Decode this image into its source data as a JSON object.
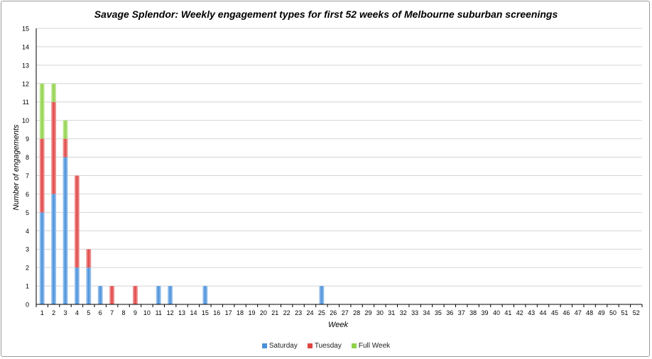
{
  "chart_data": {
    "type": "bar",
    "stacked": true,
    "title": "Savage Splendor: Weekly engagement types for first 52 weeks of Melbourne suburban screenings",
    "xlabel": "Week",
    "ylabel": "Number of engagements",
    "ylim": [
      0,
      15
    ],
    "y_ticks": [
      "0",
      "1",
      "2",
      "3",
      "4",
      "5",
      "6",
      "7",
      "8",
      "9",
      "10",
      "11",
      "12",
      "13",
      "14",
      "15"
    ],
    "grid": true,
    "legend_position": "bottom",
    "categories": [
      "1",
      "2",
      "3",
      "4",
      "5",
      "6",
      "7",
      "8",
      "9",
      "10",
      "11",
      "12",
      "13",
      "14",
      "15",
      "16",
      "17",
      "18",
      "19",
      "20",
      "21",
      "22",
      "23",
      "24",
      "25",
      "26",
      "27",
      "28",
      "29",
      "30",
      "31",
      "32",
      "33",
      "34",
      "35",
      "36",
      "37",
      "38",
      "39",
      "40",
      "41",
      "42",
      "43",
      "44",
      "45",
      "46",
      "47",
      "48",
      "49",
      "50",
      "51",
      "52"
    ],
    "series": [
      {
        "name": "Saturday",
        "color": "#4a90d9",
        "values": [
          5,
          6,
          8,
          2,
          2,
          1,
          0,
          0,
          0,
          0,
          1,
          1,
          0,
          0,
          1,
          0,
          0,
          0,
          0,
          0,
          0,
          0,
          0,
          0,
          1,
          0,
          0,
          0,
          0,
          0,
          0,
          0,
          0,
          0,
          0,
          0,
          0,
          0,
          0,
          0,
          0,
          0,
          0,
          0,
          0,
          0,
          0,
          0,
          0,
          0,
          0,
          0
        ]
      },
      {
        "name": "Tuesday",
        "color": "#e04545",
        "values": [
          4,
          5,
          1,
          5,
          1,
          0,
          1,
          0,
          1,
          0,
          0,
          0,
          0,
          0,
          0,
          0,
          0,
          0,
          0,
          0,
          0,
          0,
          0,
          0,
          0,
          0,
          0,
          0,
          0,
          0,
          0,
          0,
          0,
          0,
          0,
          0,
          0,
          0,
          0,
          0,
          0,
          0,
          0,
          0,
          0,
          0,
          0,
          0,
          0,
          0,
          0,
          0
        ]
      },
      {
        "name": "Full Week",
        "color": "#8fd14a",
        "values": [
          3,
          1,
          1,
          0,
          0,
          0,
          0,
          0,
          0,
          0,
          0,
          0,
          0,
          0,
          0,
          0,
          0,
          0,
          0,
          0,
          0,
          0,
          0,
          0,
          0,
          0,
          0,
          0,
          0,
          0,
          0,
          0,
          0,
          0,
          0,
          0,
          0,
          0,
          0,
          0,
          0,
          0,
          0,
          0,
          0,
          0,
          0,
          0,
          0,
          0,
          0,
          0
        ]
      }
    ]
  }
}
